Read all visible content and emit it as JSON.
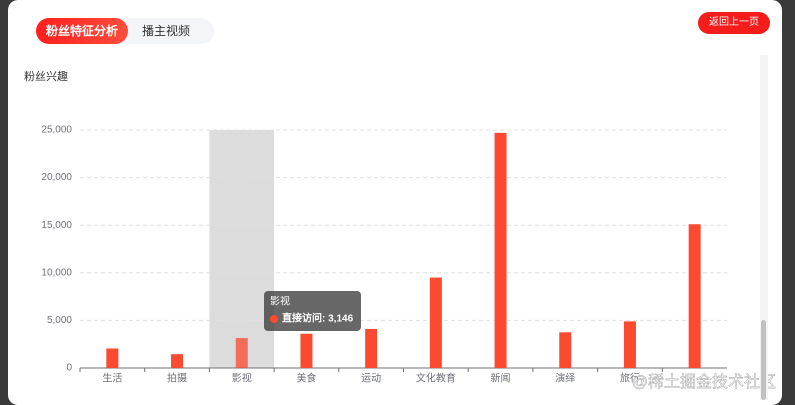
{
  "tabs": [
    "粉丝特征分析",
    "播主视频"
  ],
  "back_button": "返回上一页",
  "section_title": "粉丝兴趣",
  "watermark": "@稀土掘金技术社区",
  "chart_data": {
    "type": "bar",
    "categories": [
      "生活",
      "拍摄",
      "影视",
      "美食",
      "运动",
      "文化教育",
      "新闻",
      "演绎",
      "旅行",
      null
    ],
    "series": [
      {
        "name": "直接访问",
        "color": "#fb4a2f",
        "values": [
          2050,
          1450,
          3146,
          3600,
          4100,
          9500,
          24700,
          3750,
          4900,
          15100
        ]
      }
    ],
    "ylim": [
      0,
      25000
    ],
    "yticks": [
      0,
      {
        "value": 5000,
        "label": "5,000"
      },
      {
        "value": 10000,
        "label": "10,000"
      },
      {
        "value": 15000,
        "label": "15,000"
      },
      {
        "value": 20000,
        "label": "20,000"
      },
      {
        "value": 25000,
        "label": "25,000"
      }
    ],
    "grid": true,
    "tooltip": {
      "text": "直接访问: 3,146"
    }
  }
}
